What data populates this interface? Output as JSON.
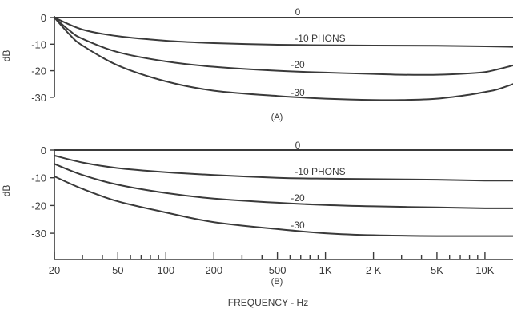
{
  "chart_data": [
    {
      "panel": "(A)",
      "type": "line",
      "ylabel": "dB",
      "xlim": [
        20,
        15000
      ],
      "ylim": [
        -30,
        0
      ],
      "yticks": [
        "0",
        "-10",
        "-20",
        "-30"
      ],
      "xscale": "log",
      "series": [
        {
          "name": "0",
          "x": [
            20,
            50,
            100,
            1000,
            10000,
            15000
          ],
          "values": [
            0,
            0,
            0,
            0,
            0,
            0
          ]
        },
        {
          "name": "-10 PHONS",
          "x": [
            20,
            30,
            50,
            100,
            200,
            500,
            1000,
            2000,
            5000,
            10000,
            15000
          ],
          "values": [
            0,
            -4.5,
            -7,
            -8.7,
            -9.6,
            -10.2,
            -10.4,
            -10.5,
            -10.6,
            -10.8,
            -11
          ]
        },
        {
          "name": "-20",
          "x": [
            20,
            25,
            30,
            50,
            100,
            200,
            500,
            1000,
            2000,
            3000,
            5000,
            8000,
            10000,
            12000,
            15000
          ],
          "values": [
            0,
            -5,
            -8,
            -13,
            -16.5,
            -18.5,
            -20,
            -20.7,
            -21.2,
            -21.5,
            -21.5,
            -21,
            -20.5,
            -19.5,
            -18
          ]
        },
        {
          "name": "-30",
          "x": [
            20,
            25,
            30,
            50,
            100,
            200,
            500,
            1000,
            2000,
            3000,
            5000,
            8000,
            10000,
            12000,
            15000
          ],
          "values": [
            0,
            -6.5,
            -10.5,
            -18,
            -24,
            -27.5,
            -29.5,
            -30.5,
            -31,
            -31,
            -30.5,
            -29,
            -28,
            -27,
            -25
          ]
        }
      ],
      "curve_labels": [
        "0",
        "-10 PHONS",
        "-20",
        "-30"
      ]
    },
    {
      "panel": "(B)",
      "type": "line",
      "ylabel": "dB",
      "xlabel": "FREQUENCY - Hz",
      "xlim": [
        20,
        15000
      ],
      "ylim": [
        -30,
        0
      ],
      "yticks": [
        "0",
        "-10",
        "-20",
        "-30"
      ],
      "xscale": "log",
      "xticks": [
        {
          "value": 20,
          "label": "20"
        },
        {
          "value": 50,
          "label": "50"
        },
        {
          "value": 100,
          "label": "100"
        },
        {
          "value": 200,
          "label": "200"
        },
        {
          "value": 500,
          "label": "500"
        },
        {
          "value": 1000,
          "label": "1K"
        },
        {
          "value": 2000,
          "label": "2 K"
        },
        {
          "value": 5000,
          "label": "5K"
        },
        {
          "value": 10000,
          "label": "10K"
        }
      ],
      "series": [
        {
          "name": "0",
          "x": [
            20,
            100,
            1000,
            10000,
            15000
          ],
          "values": [
            0,
            0,
            0,
            0,
            0
          ]
        },
        {
          "name": "-10 PHONS",
          "x": [
            20,
            30,
            50,
            100,
            200,
            500,
            1000,
            2000,
            5000,
            10000,
            15000
          ],
          "values": [
            -2,
            -4.5,
            -6.5,
            -8,
            -9,
            -10,
            -10.3,
            -10.5,
            -10.7,
            -11,
            -11
          ]
        },
        {
          "name": "-20",
          "x": [
            20,
            30,
            50,
            100,
            200,
            500,
            1000,
            2000,
            5000,
            10000,
            15000
          ],
          "values": [
            -5,
            -9,
            -12.5,
            -15.5,
            -17.5,
            -19,
            -19.8,
            -20.3,
            -20.7,
            -21,
            -21
          ]
        },
        {
          "name": "-30",
          "x": [
            20,
            30,
            50,
            100,
            200,
            500,
            1000,
            2000,
            5000,
            10000,
            15000
          ],
          "values": [
            -9.5,
            -14,
            -18.5,
            -22.5,
            -26,
            -28.5,
            -30,
            -30.7,
            -31,
            -31,
            -31
          ]
        }
      ],
      "curve_labels": [
        "0",
        "-10 PHONS",
        "-20",
        "-30"
      ]
    }
  ],
  "colors": {
    "ink": "#3a3a3a",
    "background": "#ffffff"
  }
}
